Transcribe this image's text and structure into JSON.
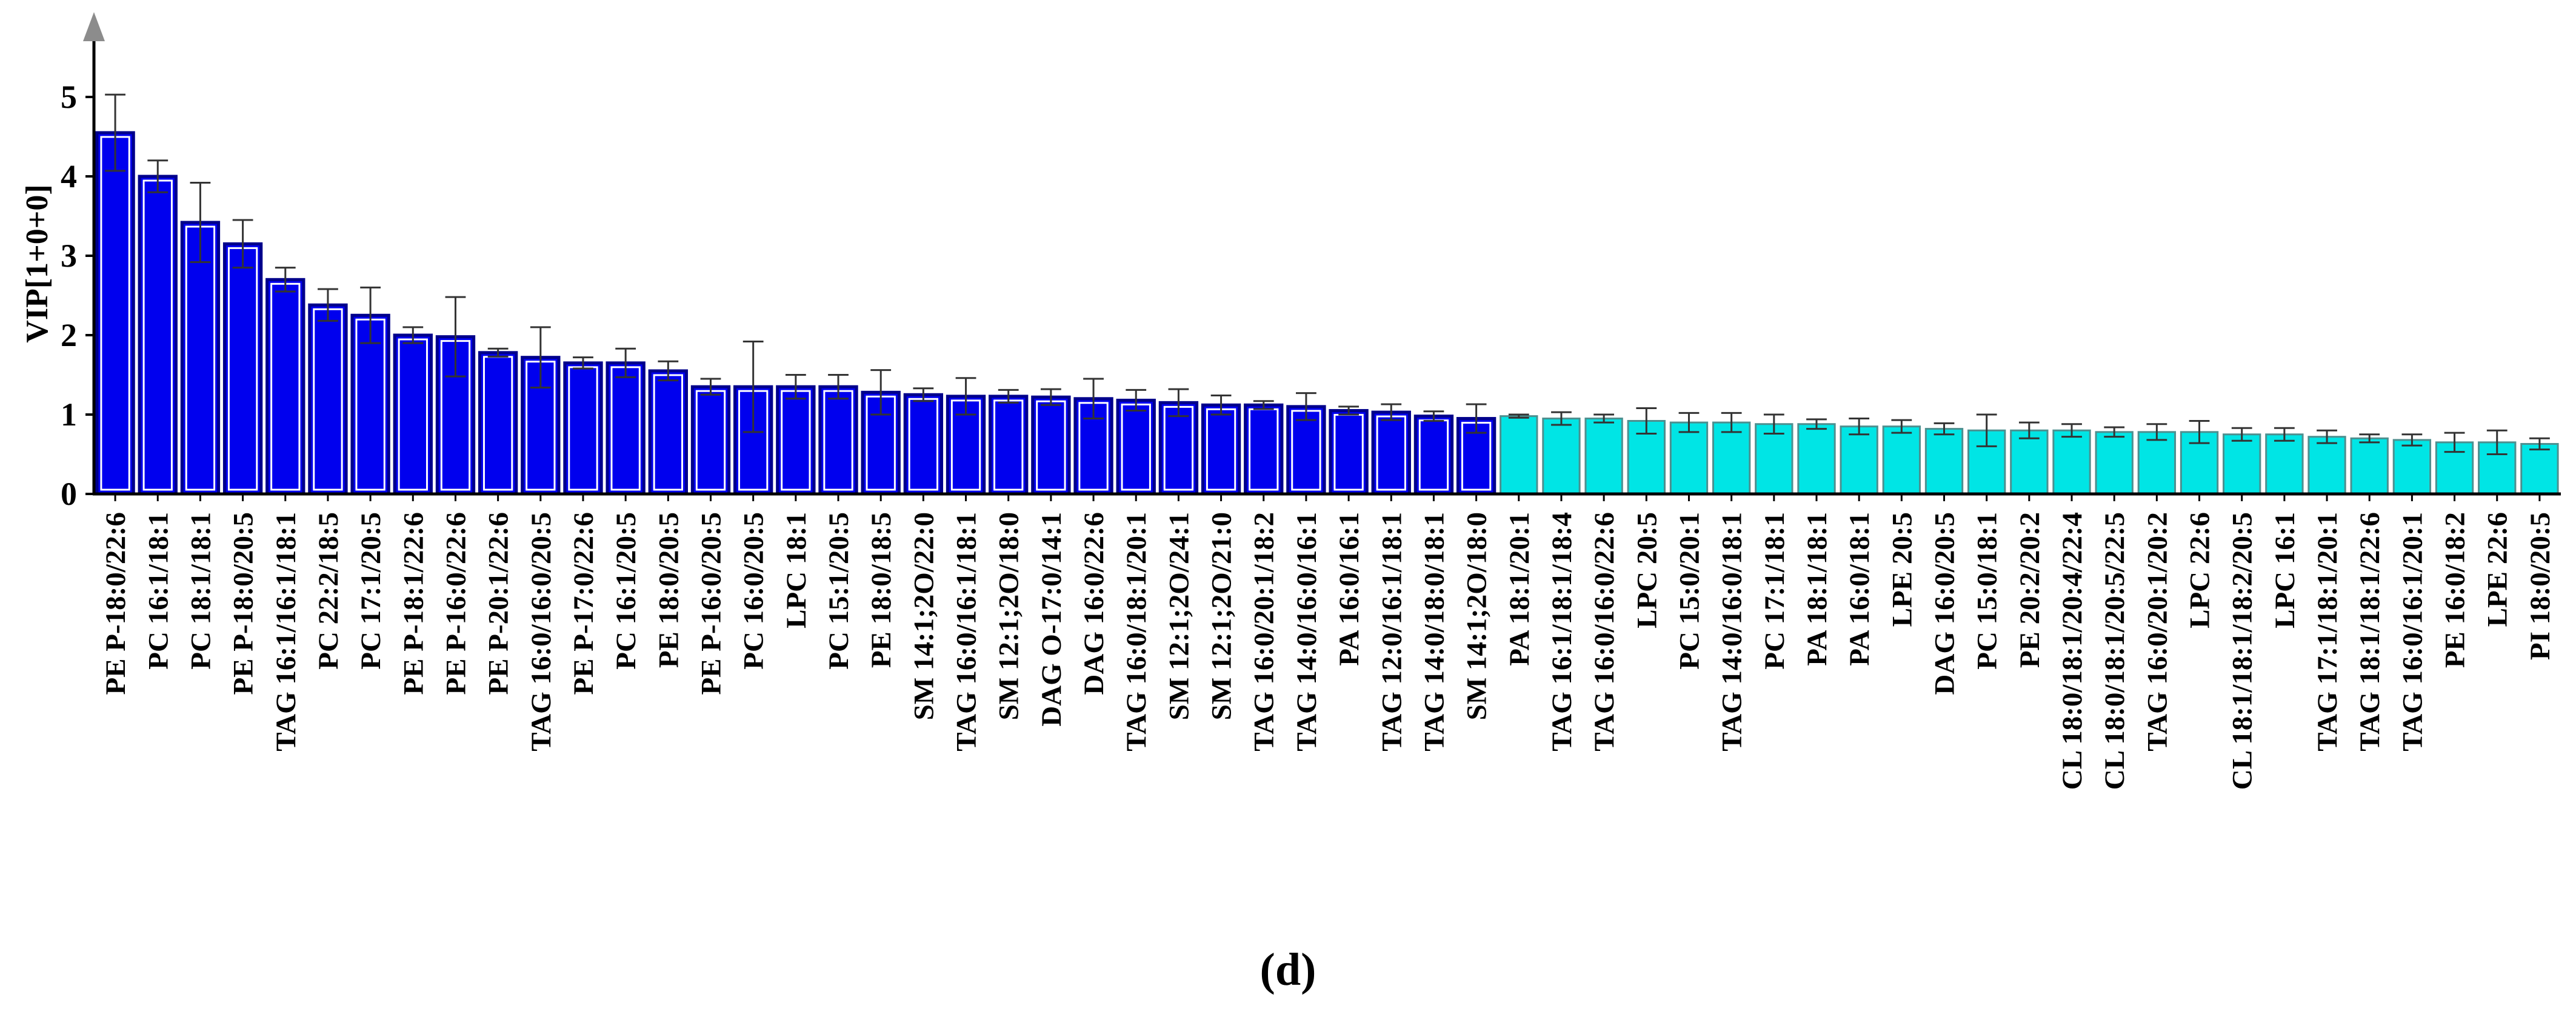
{
  "chart_data": {
    "type": "bar",
    "ylabel": "VIP[1+0+0]",
    "ylim": [
      0,
      5.5
    ],
    "yticks": [
      0,
      1,
      2,
      3,
      4,
      5
    ],
    "panel_label_open": "(",
    "panel_label_letter": "d",
    "panel_label_close": ")",
    "colors": {
      "dark_fill": "#0000ee",
      "dark_edge": "#00008b",
      "light_fill": "#00e5e5",
      "light_edge": "#4d8f8f",
      "axis": "#000000",
      "arrow": "#8c8c8c",
      "error_bar": "#333333"
    },
    "categories": [
      "PE P-18:0/22:6",
      "PC 16:1/18:1",
      "PC 18:1/18:1",
      "PE P-18:0/20:5",
      "TAG 16:1/16:1/18:1",
      "PC 22:2/18:5",
      "PC 17:1/20:5",
      "PE P-18:1/22:6",
      "PE P-16:0/22:6",
      "PE P-20:1/22:6",
      "TAG 16:0/16:0/20:5",
      "PE P-17:0/22:6",
      "PC 16:1/20:5",
      "PE 18:0/20:5",
      "PE P-16:0/20:5",
      "PC 16:0/20:5",
      "LPC 18:1",
      "PC 15:1/20:5",
      "PE 18:0/18:5",
      "SM 14:1;2O/22:0",
      "TAG 16:0/16:1/18:1",
      "SM 12:1;2O/18:0",
      "DAG O-17:0/14:1",
      "DAG 16:0/22:6",
      "TAG 16:0/18:1/20:1",
      "SM 12:1;2O/24:1",
      "SM 12:1;2O/21:0",
      "TAG 16:0/20:1/18:2",
      "TAG 14:0/16:0/16:1",
      "PA 16:0/16:1",
      "TAG 12:0/16:1/18:1",
      "TAG 14:0/18:0/18:1",
      "SM 14:1;2O/18:0",
      "PA 18:1/20:1",
      "TAG 16:1/18:1/18:4",
      "TAG 16:0/16:0/22:6",
      "LPC 20:5",
      "PC 15:0/20:1",
      "TAG 14:0/16:0/18:1",
      "PC 17:1/18:1",
      "PA 18:1/18:1",
      "PA 16:0/18:1",
      "LPE 20:5",
      "DAG 16:0/20:5",
      "PC 15:0/18:1",
      "PE 20:2/20:2",
      "CL 18:0/18:1/20:4/22:4",
      "CL 18:0/18:1/20:5/22:5",
      "TAG 16:0/20:1/20:2",
      "LPC 22:6",
      "CL 18:1/18:1/18:2/20:5",
      "LPC 16:1",
      "TAG 17:1/18:1/20:1",
      "TAG 18:1/18:1/22:6",
      "TAG 16:0/16:1/20:1",
      "PE 16:0/18:2",
      "LPE 22:6",
      "PI 18:0/20:5"
    ],
    "values": [
      4.55,
      4.0,
      3.42,
      3.15,
      2.7,
      2.38,
      2.25,
      2.0,
      1.98,
      1.78,
      1.72,
      1.65,
      1.65,
      1.55,
      1.35,
      1.35,
      1.35,
      1.35,
      1.28,
      1.25,
      1.23,
      1.23,
      1.22,
      1.2,
      1.18,
      1.15,
      1.12,
      1.12,
      1.1,
      1.05,
      1.03,
      0.98,
      0.95,
      0.98,
      0.95,
      0.95,
      0.92,
      0.9,
      0.9,
      0.88,
      0.88,
      0.85,
      0.85,
      0.82,
      0.8,
      0.8,
      0.8,
      0.78,
      0.78,
      0.78,
      0.75,
      0.75,
      0.72,
      0.7,
      0.68,
      0.65,
      0.65,
      0.63
    ],
    "errors": [
      0.48,
      0.2,
      0.5,
      0.3,
      0.15,
      0.2,
      0.35,
      0.1,
      0.5,
      0.05,
      0.38,
      0.07,
      0.18,
      0.12,
      0.1,
      0.57,
      0.15,
      0.15,
      0.28,
      0.08,
      0.23,
      0.08,
      0.1,
      0.25,
      0.13,
      0.17,
      0.12,
      0.05,
      0.17,
      0.05,
      0.1,
      0.06,
      0.18,
      0.02,
      0.08,
      0.05,
      0.16,
      0.12,
      0.12,
      0.12,
      0.06,
      0.1,
      0.08,
      0.07,
      0.2,
      0.1,
      0.08,
      0.06,
      0.1,
      0.14,
      0.08,
      0.08,
      0.08,
      0.05,
      0.07,
      0.12,
      0.15,
      0.07
    ],
    "highlight_count": 33
  }
}
